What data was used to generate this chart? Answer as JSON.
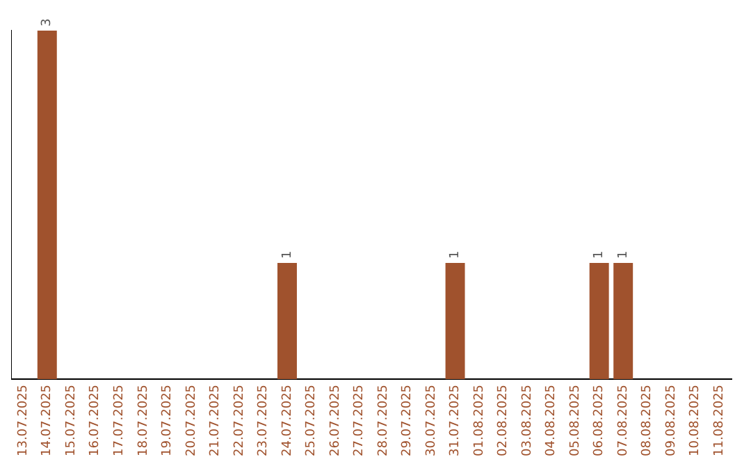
{
  "chart_data": {
    "type": "bar",
    "categories": [
      "13.07.2025",
      "14.07.2025",
      "15.07.2025",
      "16.07.2025",
      "17.07.2025",
      "18.07.2025",
      "19.07.2025",
      "20.07.2025",
      "21.07.2025",
      "22.07.2025",
      "23.07.2025",
      "24.07.2025",
      "25.07.2025",
      "26.07.2025",
      "27.07.2025",
      "28.07.2025",
      "29.07.2025",
      "30.07.2025",
      "31.07.2025",
      "01.08.2025",
      "02.08.2025",
      "03.08.2025",
      "04.08.2025",
      "05.08.2025",
      "06.08.2025",
      "07.08.2025",
      "08.08.2025",
      "09.08.2025",
      "10.08.2025",
      "11.08.2025"
    ],
    "values": [
      0,
      3,
      0,
      0,
      0,
      0,
      0,
      0,
      0,
      0,
      0,
      1,
      0,
      0,
      0,
      0,
      0,
      0,
      1,
      0,
      0,
      0,
      0,
      0,
      1,
      1,
      0,
      0,
      0,
      0
    ],
    "value_labels": [
      null,
      "3",
      null,
      null,
      null,
      null,
      null,
      null,
      null,
      null,
      null,
      "1",
      null,
      null,
      null,
      null,
      null,
      null,
      "1",
      null,
      null,
      null,
      null,
      null,
      "1",
      "1",
      null,
      null,
      null,
      null
    ],
    "color": "#a0522d",
    "ylim": [
      0,
      3
    ],
    "grid": false,
    "legend": false,
    "tick_labels": "x"
  }
}
